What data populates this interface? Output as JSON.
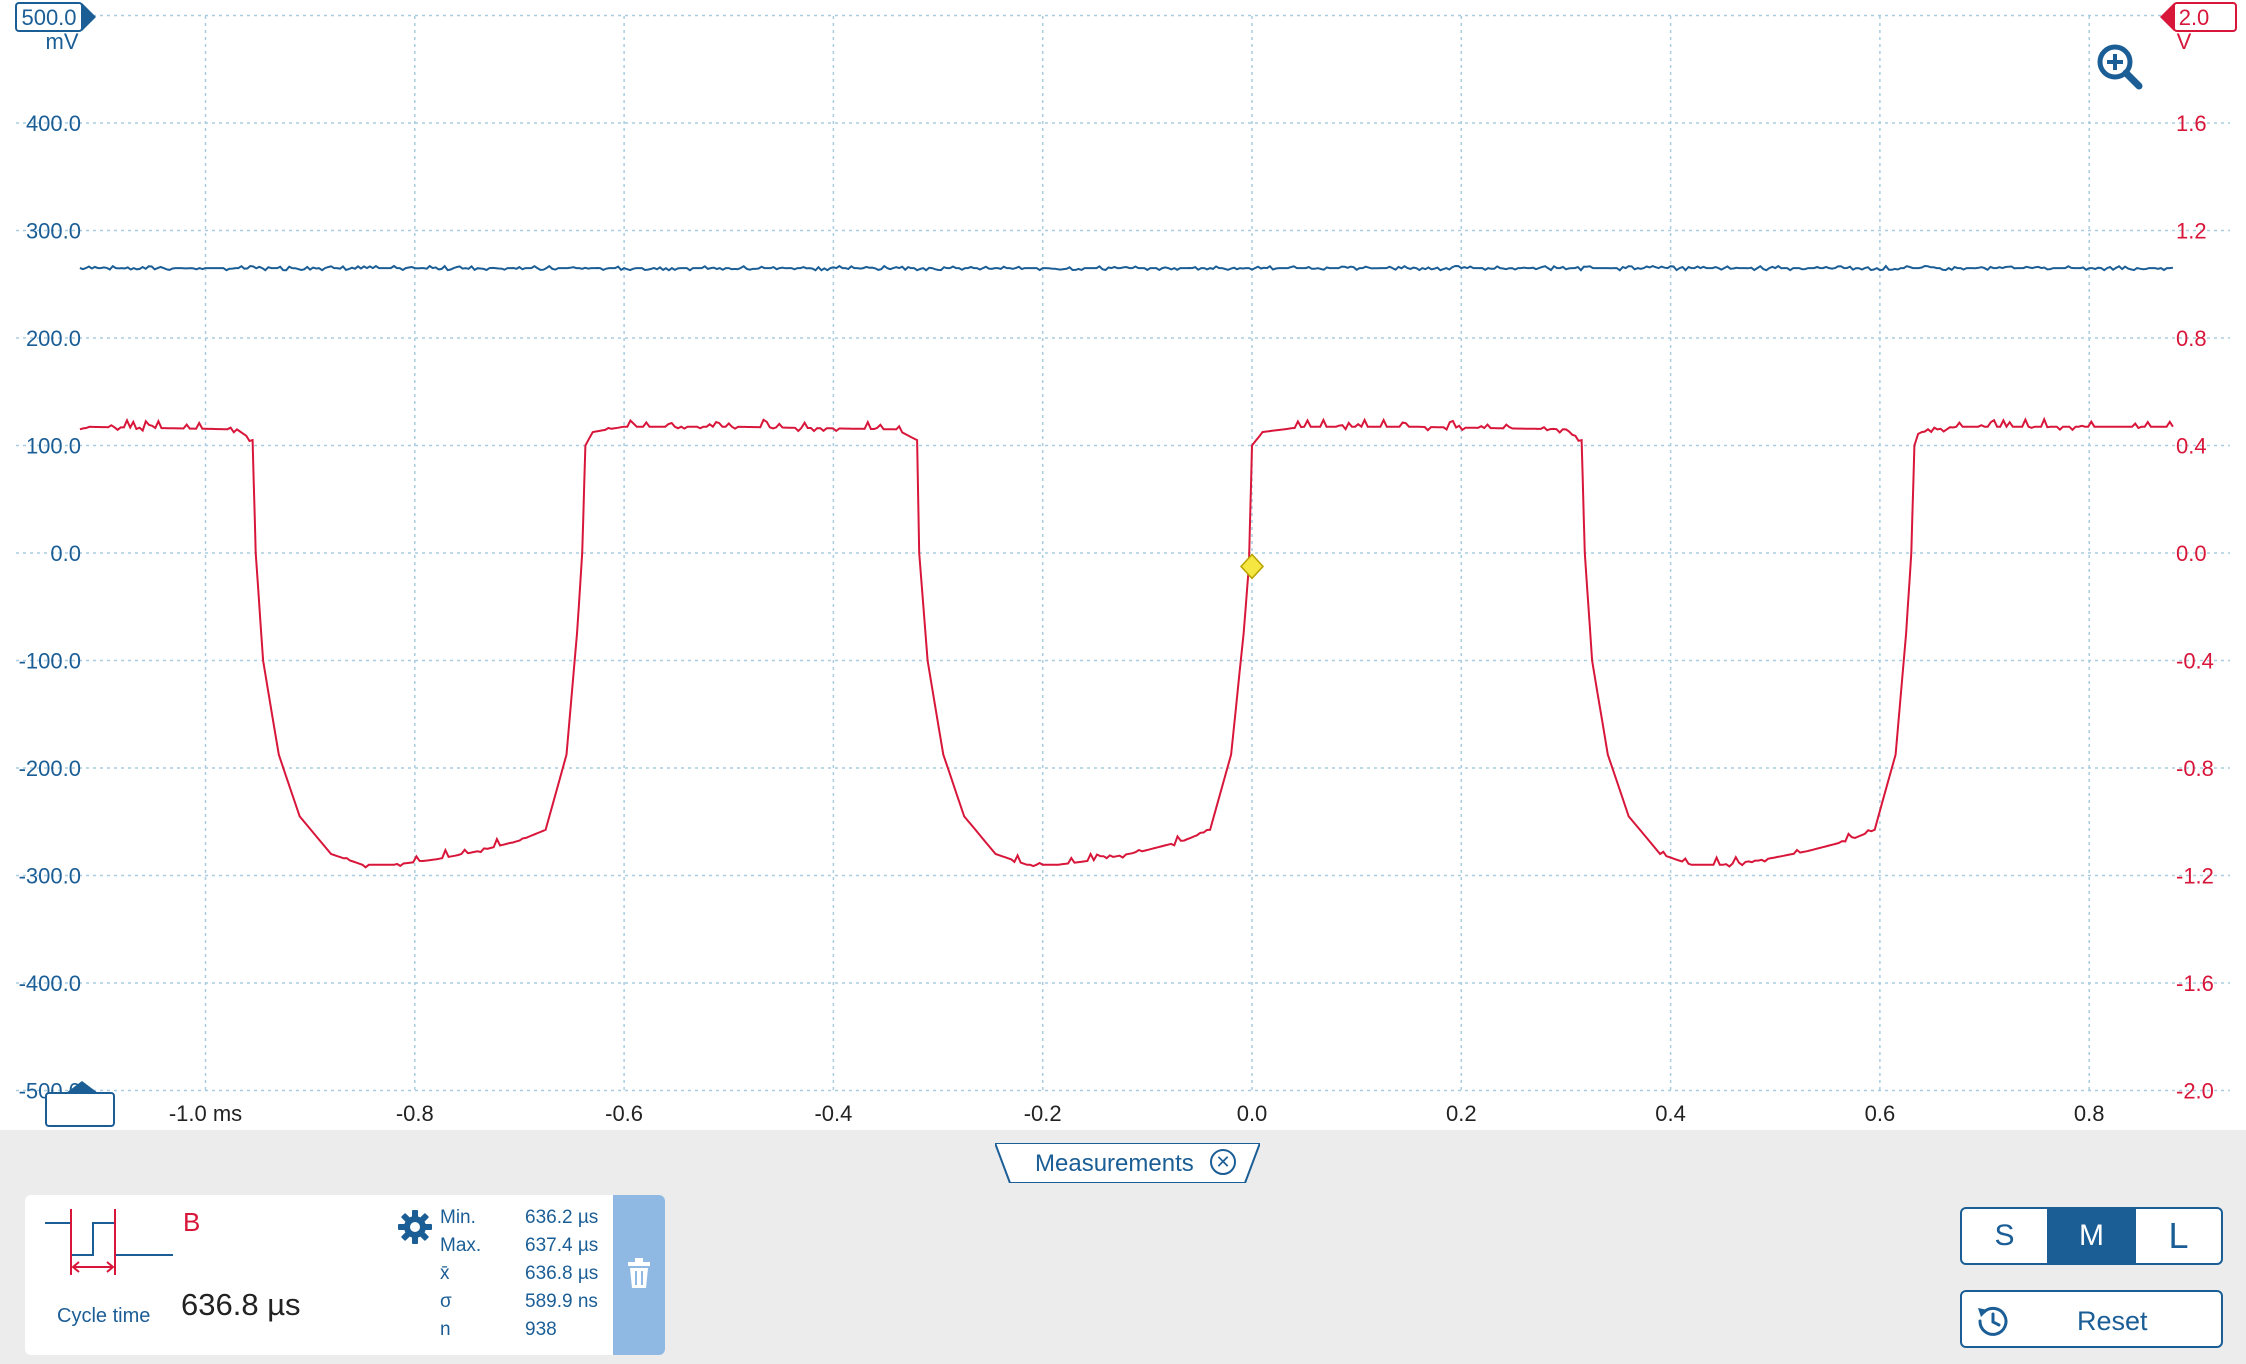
{
  "colors": {
    "channel_a": "#1b5e96",
    "channel_b": "#d8163a",
    "grid": "#a9cde0",
    "trigger": "#f5e642"
  },
  "scope": {
    "left_axis": {
      "top_label": "500.0",
      "unit": "mV",
      "ticks": [
        "400.0",
        "300.0",
        "200.0",
        "100.0",
        "0.0",
        "-100.0",
        "-200.0",
        "-300.0",
        "-400.0",
        "-500.0"
      ]
    },
    "right_axis": {
      "top_label": "2.0",
      "unit": "V",
      "ticks": [
        "1.6",
        "1.2",
        "0.8",
        "0.4",
        "0.0",
        "-0.4",
        "-0.8",
        "-1.2",
        "-1.6",
        "-2.0"
      ]
    },
    "time_axis": {
      "ticks": [
        "-1.0 ms",
        "-0.8",
        "-0.6",
        "-0.4",
        "-0.2",
        "0.0",
        "0.2",
        "0.4",
        "0.6",
        "0.8"
      ]
    },
    "zoom_icon": "zoom-in-icon"
  },
  "chart_data": {
    "type": "line",
    "x_unit": "ms",
    "xlim": [
      -1.18,
      0.88
    ],
    "left_ylim_mV": [
      -500,
      500
    ],
    "right_ylim_V": [
      -2.0,
      2.0
    ],
    "grid": true,
    "series": [
      {
        "axis": "left",
        "x": [
          -1.12,
          0.88
        ],
        "y": [
          265,
          265
        ]
      },
      {
        "axis": "right",
        "x": [
          -1.12,
          -0.97,
          -0.955,
          -0.952,
          -0.945,
          -0.93,
          -0.91,
          -0.88,
          -0.85,
          -0.82,
          -0.78,
          -0.74,
          -0.7,
          -0.675,
          -0.655,
          -0.645,
          -0.64,
          -0.637,
          -0.63,
          -0.6,
          -0.5,
          -0.34,
          -0.32,
          -0.318,
          -0.31,
          -0.295,
          -0.275,
          -0.245,
          -0.215,
          -0.185,
          -0.145,
          -0.105,
          -0.065,
          -0.04,
          -0.02,
          -0.008,
          -0.003,
          0.0,
          0.01,
          0.05,
          0.15,
          0.3,
          0.315,
          0.318,
          0.325,
          0.34,
          0.36,
          0.39,
          0.42,
          0.45,
          0.49,
          0.53,
          0.57,
          0.595,
          0.615,
          0.625,
          0.63,
          0.633,
          0.64,
          0.67,
          0.88
        ],
        "y": [
          0.47,
          0.46,
          0.42,
          0.0,
          -0.4,
          -0.75,
          -0.98,
          -1.12,
          -1.16,
          -1.16,
          -1.14,
          -1.11,
          -1.07,
          -1.03,
          -0.75,
          -0.3,
          0.0,
          0.4,
          0.45,
          0.47,
          0.47,
          0.46,
          0.42,
          0.0,
          -0.4,
          -0.75,
          -0.98,
          -1.12,
          -1.16,
          -1.16,
          -1.14,
          -1.11,
          -1.07,
          -1.03,
          -0.75,
          -0.3,
          -0.05,
          0.4,
          0.45,
          0.47,
          0.47,
          0.46,
          0.42,
          0.0,
          -0.4,
          -0.75,
          -0.98,
          -1.12,
          -1.16,
          -1.16,
          -1.14,
          -1.11,
          -1.07,
          -1.03,
          -0.75,
          -0.3,
          0.0,
          0.4,
          0.45,
          0.47,
          0.47
        ]
      }
    ],
    "trigger": {
      "x": 0.0,
      "y_V": -0.05
    }
  },
  "measurements_tab": {
    "label": "Measurements",
    "close_icon": "close-circle-icon"
  },
  "measurement": {
    "channel": "B",
    "name": "Cycle time",
    "value": "636.8 µs",
    "stats": [
      {
        "label": "Min.",
        "value": "636.2 µs"
      },
      {
        "label": "Max.",
        "value": "637.4 µs"
      },
      {
        "label": "x̄",
        "value": "636.8 µs"
      },
      {
        "label": "σ",
        "value": "589.9 ns"
      },
      {
        "label": "n",
        "value": "938"
      }
    ],
    "settings_icon": "gear-icon",
    "delete_icon": "trash-icon"
  },
  "controls": {
    "sizes": [
      "S",
      "M",
      "L"
    ],
    "active_size": "M",
    "reset_label": "Reset",
    "reset_icon": "history-icon"
  }
}
